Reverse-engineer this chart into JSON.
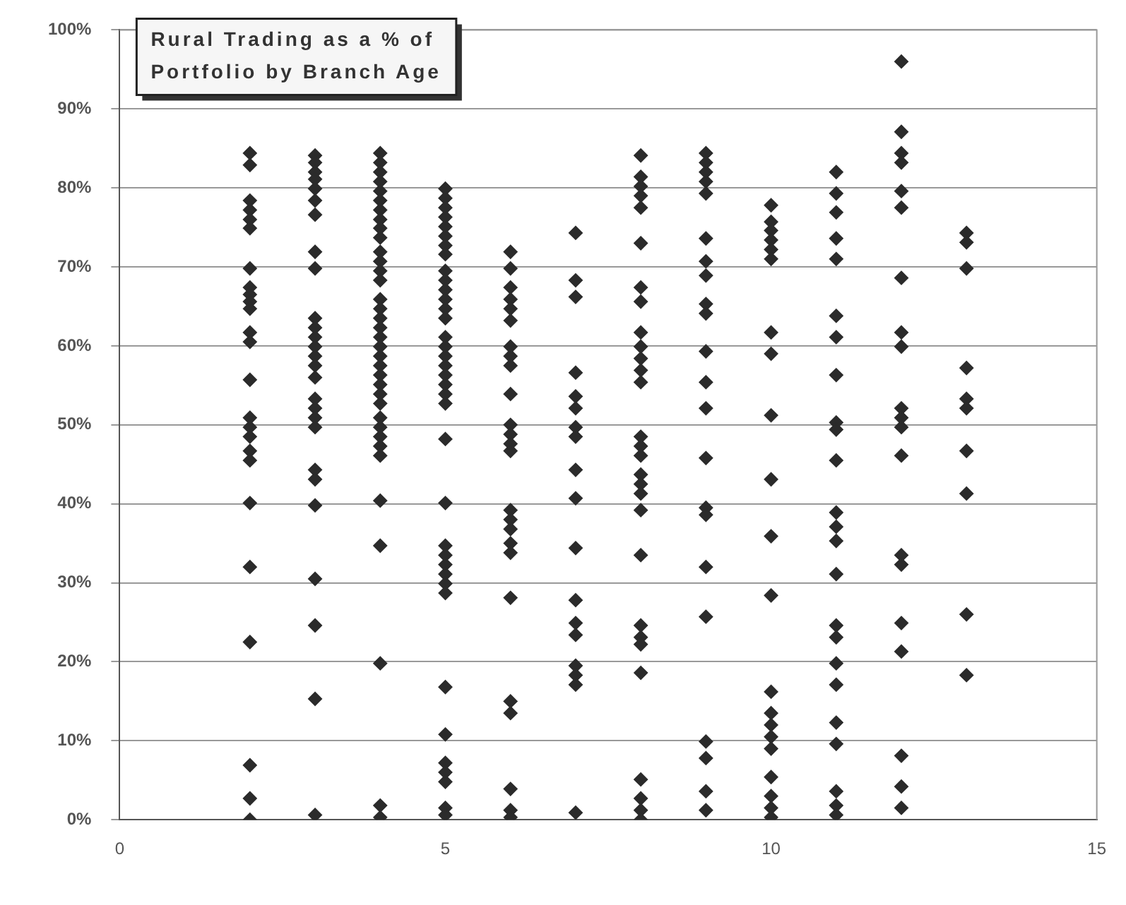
{
  "chart_data": {
    "type": "scatter",
    "title": "Rural Trading as a % of Portfolio by Branch Age",
    "x": [
      2,
      2,
      2,
      2,
      2,
      2,
      2,
      2,
      2,
      2,
      2,
      2,
      2,
      2,
      2,
      2,
      2,
      2,
      2,
      2,
      2,
      2,
      2,
      2,
      2,
      3,
      3,
      3,
      3,
      3,
      3,
      3,
      3,
      3,
      3,
      3,
      3,
      3,
      3,
      3,
      3,
      3,
      3,
      3,
      3,
      3,
      3,
      3,
      3,
      3,
      3,
      3,
      4,
      4,
      4,
      4,
      4,
      4,
      4,
      4,
      4,
      4,
      4,
      4,
      4,
      4,
      4,
      4,
      4,
      4,
      4,
      4,
      4,
      4,
      4,
      4,
      4,
      4,
      4,
      4,
      4,
      4,
      4,
      4,
      4,
      4,
      4,
      4,
      5,
      5,
      5,
      5,
      5,
      5,
      5,
      5,
      5,
      5,
      5,
      5,
      5,
      5,
      5,
      5,
      5,
      5,
      5,
      5,
      5,
      5,
      5,
      5,
      5,
      5,
      5,
      5,
      5,
      5,
      5,
      5,
      5,
      5,
      5,
      5,
      5,
      6,
      6,
      6,
      6,
      6,
      6,
      6,
      6,
      6,
      6,
      6,
      6,
      6,
      6,
      6,
      6,
      6,
      6,
      6,
      6,
      6,
      6,
      6,
      6,
      6,
      7,
      7,
      7,
      7,
      7,
      7,
      7,
      7,
      7,
      7,
      7,
      7,
      7,
      7,
      7,
      7,
      7,
      7,
      8,
      8,
      8,
      8,
      8,
      8,
      8,
      8,
      8,
      8,
      8,
      8,
      8,
      8,
      8,
      8,
      8,
      8,
      8,
      8,
      8,
      8,
      8,
      8,
      8,
      8,
      8,
      8,
      8,
      9,
      9,
      9,
      9,
      9,
      9,
      9,
      9,
      9,
      9,
      9,
      9,
      9,
      9,
      9,
      9,
      9,
      9,
      9,
      9,
      9,
      9,
      10,
      10,
      10,
      10,
      10,
      10,
      10,
      10,
      10,
      10,
      10,
      10,
      10,
      10,
      10,
      10,
      10,
      10,
      10,
      10,
      10,
      11,
      11,
      11,
      11,
      11,
      11,
      11,
      11,
      11,
      11,
      11,
      11,
      11,
      11,
      11,
      11,
      11,
      11,
      11,
      11,
      11,
      11,
      11,
      11,
      12,
      12,
      12,
      12,
      12,
      12,
      12,
      12,
      12,
      12,
      12,
      12,
      12,
      12,
      12,
      12,
      12,
      12,
      12,
      12,
      13,
      13,
      13,
      13,
      13,
      13,
      13,
      13,
      13,
      13
    ],
    "values": [
      84.4,
      82.9,
      78.4,
      77.2,
      76,
      74.9,
      69.8,
      67.4,
      66.5,
      65.6,
      64.7,
      61.7,
      60.5,
      55.7,
      50.9,
      49.7,
      48.5,
      46.7,
      45.5,
      40.1,
      32,
      22.5,
      6.9,
      2.7,
      0,
      84.1,
      83.2,
      82,
      81.1,
      79.9,
      78.4,
      76.6,
      71.9,
      69.8,
      63.5,
      62.3,
      61.1,
      59.9,
      58.7,
      57.5,
      56,
      53.3,
      52.1,
      50.9,
      49.7,
      44.3,
      43.1,
      39.8,
      30.5,
      24.6,
      15.3,
      0.6,
      84.4,
      83.2,
      82,
      80.8,
      79.6,
      78.4,
      77.2,
      76,
      74.9,
      73.7,
      71.9,
      70.7,
      69.5,
      68.3,
      65.9,
      64.7,
      63.5,
      62.3,
      61.1,
      59.9,
      58.7,
      57.5,
      56.3,
      55.1,
      53.9,
      52.7,
      50.9,
      49.7,
      48.5,
      47.3,
      46.1,
      40.4,
      34.7,
      19.8,
      1.8,
      0.3,
      79.9,
      78.7,
      77.5,
      76.3,
      75.1,
      73.9,
      72.7,
      71.6,
      69.5,
      68.3,
      67.1,
      65.9,
      64.7,
      63.5,
      61.1,
      59.9,
      58.7,
      57.5,
      56.3,
      55.1,
      53.9,
      52.7,
      48.2,
      40.1,
      34.7,
      33.5,
      32.3,
      31.1,
      29.9,
      28.7,
      16.8,
      10.8,
      7.2,
      6,
      4.8,
      1.5,
      0.6,
      71.9,
      69.8,
      67.4,
      65.9,
      64.7,
      63.2,
      59.9,
      58.7,
      57.5,
      53.9,
      50,
      48.8,
      47.6,
      46.7,
      39.2,
      38,
      36.8,
      35,
      33.8,
      28.1,
      15,
      13.5,
      3.9,
      1.2,
      0.3,
      74.3,
      68.3,
      66.2,
      56.6,
      53.6,
      52.1,
      49.7,
      48.5,
      44.3,
      40.7,
      34.4,
      27.8,
      24.9,
      23.4,
      19.5,
      18.3,
      17.1,
      0.9,
      84.1,
      81.4,
      80.2,
      79,
      77.5,
      73,
      67.4,
      65.6,
      61.7,
      59.9,
      58.4,
      56.9,
      55.4,
      48.5,
      47.3,
      46.1,
      43.7,
      42.5,
      41.3,
      39.2,
      33.5,
      24.6,
      23.1,
      22.2,
      18.6,
      5.1,
      2.7,
      1.2,
      0,
      84.4,
      83.2,
      82,
      80.8,
      79.3,
      73.6,
      70.7,
      68.9,
      65.3,
      64.1,
      59.3,
      55.4,
      52.1,
      45.8,
      39.5,
      38.6,
      32,
      25.7,
      9.9,
      7.8,
      3.6,
      1.2,
      77.8,
      75.7,
      74.6,
      73.4,
      72.2,
      71,
      61.7,
      59,
      51.2,
      43.1,
      35.9,
      28.4,
      16.2,
      13.5,
      12,
      10.5,
      9,
      5.4,
      3,
      1.5,
      0.3,
      82,
      79.3,
      76.9,
      73.6,
      71,
      63.8,
      61.1,
      56.3,
      50.3,
      49.4,
      45.5,
      38.9,
      37.1,
      35.3,
      31.1,
      24.6,
      23.1,
      19.8,
      17.1,
      12.3,
      9.6,
      3.6,
      1.8,
      0.6,
      96,
      87.1,
      84.4,
      83.2,
      79.6,
      77.5,
      68.6,
      61.7,
      59.9,
      52.1,
      50.9,
      49.7,
      46.1,
      33.5,
      32.3,
      24.9,
      21.3,
      8.1,
      4.2,
      1.5,
      74.3,
      73.1,
      69.8,
      57.2,
      53.3,
      52.1,
      46.7,
      41.3,
      26,
      18.3
    ],
    "color": "#2b2b2b",
    "marker": "diamond",
    "xlim": [
      0,
      15
    ],
    "xticks": [
      0,
      5,
      10,
      15
    ],
    "ylim": [
      0,
      100
    ],
    "yticks": [
      {
        "value": 0,
        "label": "0%"
      },
      {
        "value": 10,
        "label": "10%"
      },
      {
        "value": 20,
        "label": "20%"
      },
      {
        "value": 30,
        "label": "30%"
      },
      {
        "value": 40,
        "label": "40%"
      },
      {
        "value": 50,
        "label": "50%"
      },
      {
        "value": 60,
        "label": "60%"
      },
      {
        "value": 70,
        "label": "70%"
      },
      {
        "value": 80,
        "label": "80%"
      },
      {
        "value": 90,
        "label": "90%"
      },
      {
        "value": 100,
        "label": "100%"
      }
    ],
    "grid": "y",
    "legend": false
  }
}
